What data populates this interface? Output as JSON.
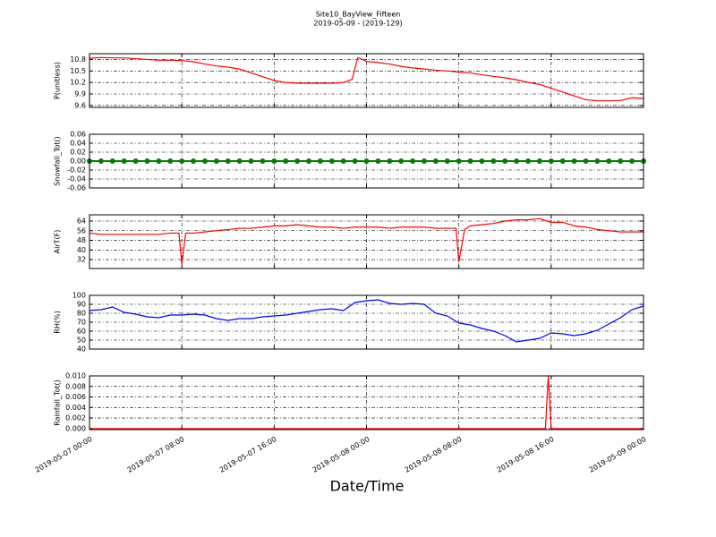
{
  "chart_data": [
    {
      "type": "line",
      "title": "Site10_BayView_Fifteen",
      "subtitle": "2019-05-09 - (2019-129)",
      "ylabel": "P(unitless)",
      "color": "#ff0000",
      "grid": true,
      "x": [
        "2019-05-07 00:00",
        "2019-05-07 01:00",
        "2019-05-07 02:00",
        "2019-05-07 03:00",
        "2019-05-07 04:00",
        "2019-05-07 05:00",
        "2019-05-07 06:00",
        "2019-05-07 07:00",
        "2019-05-07 08:00",
        "2019-05-07 09:00",
        "2019-05-07 10:00",
        "2019-05-07 11:00",
        "2019-05-07 12:00",
        "2019-05-07 13:00",
        "2019-05-07 14:00",
        "2019-05-07 15:00",
        "2019-05-07 16:00",
        "2019-05-07 17:00",
        "2019-05-07 18:00",
        "2019-05-07 19:00",
        "2019-05-07 20:00",
        "2019-05-07 21:00",
        "2019-05-07 22:00",
        "2019-05-07 22:45",
        "2019-05-07 23:15",
        "2019-05-08 00:00",
        "2019-05-08 01:00",
        "2019-05-08 02:00",
        "2019-05-08 03:00",
        "2019-05-08 04:00",
        "2019-05-08 05:00",
        "2019-05-08 06:00",
        "2019-05-08 07:00",
        "2019-05-08 08:00",
        "2019-05-08 09:00",
        "2019-05-08 10:00",
        "2019-05-08 11:00",
        "2019-05-08 12:00",
        "2019-05-08 13:00",
        "2019-05-08 14:00",
        "2019-05-08 15:00",
        "2019-05-08 16:00",
        "2019-05-08 17:00",
        "2019-05-08 18:00",
        "2019-05-08 19:00",
        "2019-05-08 20:00",
        "2019-05-08 21:00",
        "2019-05-08 22:00",
        "2019-05-08 23:00",
        "2019-05-09 00:00"
      ],
      "values": [
        10.83,
        10.85,
        10.84,
        10.84,
        10.82,
        10.8,
        10.78,
        10.78,
        10.77,
        10.74,
        10.68,
        10.63,
        10.6,
        10.55,
        10.45,
        10.35,
        10.25,
        10.2,
        10.18,
        10.18,
        10.18,
        10.18,
        10.2,
        10.28,
        10.85,
        10.75,
        10.72,
        10.68,
        10.62,
        10.58,
        10.55,
        10.52,
        10.5,
        10.47,
        10.45,
        10.4,
        10.36,
        10.32,
        10.27,
        10.2,
        10.15,
        10.05,
        9.95,
        9.85,
        9.75,
        9.72,
        9.72,
        9.73,
        9.8,
        9.78
      ],
      "xlim": [
        "2019-05-07 00:00",
        "2019-05-09 00:00"
      ],
      "xticks": [
        "2019-05-07 00:00",
        "2019-05-07 08:00",
        "2019-05-07 16:00",
        "2019-05-08 00:00",
        "2019-05-08 08:00",
        "2019-05-08 16:00",
        "2019-05-09 00:00"
      ],
      "ylim": [
        9.55,
        10.95
      ],
      "yticks": [
        9.6,
        9.9,
        10.2,
        10.5,
        10.8
      ]
    },
    {
      "type": "line",
      "ylabel": "Snowfall_Tot()",
      "color": "#008000",
      "marker": "o",
      "grid": true,
      "x": [
        "2019-05-07 00:00",
        "2019-05-07 01:00",
        "2019-05-07 02:00",
        "2019-05-07 03:00",
        "2019-05-07 04:00",
        "2019-05-07 05:00",
        "2019-05-07 06:00",
        "2019-05-07 07:00",
        "2019-05-07 08:00",
        "2019-05-07 09:00",
        "2019-05-07 10:00",
        "2019-05-07 11:00",
        "2019-05-07 12:00",
        "2019-05-07 13:00",
        "2019-05-07 14:00",
        "2019-05-07 15:00",
        "2019-05-07 16:00",
        "2019-05-07 17:00",
        "2019-05-07 18:00",
        "2019-05-07 19:00",
        "2019-05-07 20:00",
        "2019-05-07 21:00",
        "2019-05-07 22:00",
        "2019-05-07 23:00",
        "2019-05-08 00:00",
        "2019-05-08 01:00",
        "2019-05-08 02:00",
        "2019-05-08 03:00",
        "2019-05-08 04:00",
        "2019-05-08 05:00",
        "2019-05-08 06:00",
        "2019-05-08 07:00",
        "2019-05-08 08:00",
        "2019-05-08 09:00",
        "2019-05-08 10:00",
        "2019-05-08 11:00",
        "2019-05-08 12:00",
        "2019-05-08 13:00",
        "2019-05-08 14:00",
        "2019-05-08 15:00",
        "2019-05-08 16:00",
        "2019-05-08 17:00",
        "2019-05-08 18:00",
        "2019-05-08 19:00",
        "2019-05-08 20:00",
        "2019-05-08 21:00",
        "2019-05-08 22:00",
        "2019-05-08 23:00",
        "2019-05-09 00:00"
      ],
      "values": [
        0,
        0,
        0,
        0,
        0,
        0,
        0,
        0,
        0,
        0,
        0,
        0,
        0,
        0,
        0,
        0,
        0,
        0,
        0,
        0,
        0,
        0,
        0,
        0,
        0,
        0,
        0,
        0,
        0,
        0,
        0,
        0,
        0,
        0,
        0,
        0,
        0,
        0,
        0,
        0,
        0,
        0,
        0,
        0,
        0,
        0,
        0,
        0,
        0
      ],
      "xlim": [
        "2019-05-07 00:00",
        "2019-05-09 00:00"
      ],
      "xticks": [
        "2019-05-07 00:00",
        "2019-05-07 08:00",
        "2019-05-07 16:00",
        "2019-05-08 00:00",
        "2019-05-08 08:00",
        "2019-05-08 16:00",
        "2019-05-09 00:00"
      ],
      "ylim": [
        -0.06,
        0.06
      ],
      "yticks": [
        -0.06,
        -0.04,
        -0.02,
        {
          "value": 0,
          "label": "0.00"
        },
        0.02,
        0.04,
        0.06
      ]
    },
    {
      "type": "line",
      "ylabel": "AirT(F)",
      "color": "#ff0000",
      "grid": true,
      "x": [
        "2019-05-07 00:00",
        "2019-05-07 01:00",
        "2019-05-07 02:00",
        "2019-05-07 03:00",
        "2019-05-07 04:00",
        "2019-05-07 05:00",
        "2019-05-07 06:00",
        "2019-05-07 07:00",
        "2019-05-07 07:45",
        "2019-05-07 08:00",
        "2019-05-07 08:20",
        "2019-05-07 09:00",
        "2019-05-07 10:00",
        "2019-05-07 11:00",
        "2019-05-07 12:00",
        "2019-05-07 13:00",
        "2019-05-07 14:00",
        "2019-05-07 15:00",
        "2019-05-07 16:00",
        "2019-05-07 17:00",
        "2019-05-07 18:00",
        "2019-05-07 19:00",
        "2019-05-07 20:00",
        "2019-05-07 21:00",
        "2019-05-07 22:00",
        "2019-05-07 23:00",
        "2019-05-08 00:00",
        "2019-05-08 01:00",
        "2019-05-08 02:00",
        "2019-05-08 03:00",
        "2019-05-08 04:00",
        "2019-05-08 05:00",
        "2019-05-08 06:00",
        "2019-05-08 07:00",
        "2019-05-08 07:45",
        "2019-05-08 08:00",
        "2019-05-08 08:30",
        "2019-05-08 09:00",
        "2019-05-08 10:00",
        "2019-05-08 11:00",
        "2019-05-08 12:00",
        "2019-05-08 13:00",
        "2019-05-08 14:00",
        "2019-05-08 15:00",
        "2019-05-08 16:00",
        "2019-05-08 17:00",
        "2019-05-08 18:00",
        "2019-05-08 19:00",
        "2019-05-08 20:00",
        "2019-05-08 21:00",
        "2019-05-08 22:00",
        "2019-05-08 23:00",
        "2019-05-09 00:00"
      ],
      "values": [
        54,
        53,
        53,
        53,
        53,
        53,
        53,
        54,
        54,
        28,
        54,
        54,
        55,
        56,
        57,
        58,
        58,
        59,
        60,
        60,
        61,
        60,
        59,
        59,
        58,
        59,
        59,
        59,
        58,
        59,
        59,
        59,
        58,
        58,
        58,
        30,
        57,
        60,
        61,
        62,
        64,
        65,
        65,
        66,
        63,
        63,
        60,
        59,
        57,
        56,
        55,
        55,
        55
      ],
      "xlim": [
        "2019-05-07 00:00",
        "2019-05-09 00:00"
      ],
      "xticks": [
        "2019-05-07 00:00",
        "2019-05-07 08:00",
        "2019-05-07 16:00",
        "2019-05-08 00:00",
        "2019-05-08 08:00",
        "2019-05-08 16:00",
        "2019-05-09 00:00"
      ],
      "ylim": [
        24.6,
        69.2
      ],
      "yticks": [
        32,
        40,
        48,
        56,
        64
      ]
    },
    {
      "type": "line",
      "ylabel": "RH(%)",
      "color": "#0000ff",
      "grid": true,
      "x": [
        "2019-05-07 00:00",
        "2019-05-07 01:00",
        "2019-05-07 02:00",
        "2019-05-07 03:00",
        "2019-05-07 04:00",
        "2019-05-07 05:00",
        "2019-05-07 06:00",
        "2019-05-07 07:00",
        "2019-05-07 08:00",
        "2019-05-07 09:00",
        "2019-05-07 10:00",
        "2019-05-07 11:00",
        "2019-05-07 12:00",
        "2019-05-07 13:00",
        "2019-05-07 14:00",
        "2019-05-07 15:00",
        "2019-05-07 16:00",
        "2019-05-07 17:00",
        "2019-05-07 18:00",
        "2019-05-07 19:00",
        "2019-05-07 20:00",
        "2019-05-07 21:00",
        "2019-05-07 22:00",
        "2019-05-07 23:00",
        "2019-05-08 00:00",
        "2019-05-08 01:00",
        "2019-05-08 02:00",
        "2019-05-08 03:00",
        "2019-05-08 04:00",
        "2019-05-08 05:00",
        "2019-05-08 06:00",
        "2019-05-08 07:00",
        "2019-05-08 08:00",
        "2019-05-08 09:00",
        "2019-05-08 10:00",
        "2019-05-08 11:00",
        "2019-05-08 12:00",
        "2019-05-08 13:00",
        "2019-05-08 14:00",
        "2019-05-08 15:00",
        "2019-05-08 16:00",
        "2019-05-08 17:00",
        "2019-05-08 18:00",
        "2019-05-08 19:00",
        "2019-05-08 20:00",
        "2019-05-08 21:00",
        "2019-05-08 22:00",
        "2019-05-08 23:00",
        "2019-05-09 00:00"
      ],
      "values": [
        83,
        84,
        87,
        81,
        79,
        76,
        75,
        78,
        78,
        79,
        78,
        74,
        72,
        74,
        74,
        76,
        77,
        78,
        80,
        82,
        84,
        85,
        83,
        92,
        94,
        95,
        91,
        90,
        91,
        90,
        80,
        77,
        69,
        67,
        63,
        60,
        55,
        48,
        50,
        52,
        58,
        57,
        55,
        57,
        61,
        68,
        75,
        84,
        88
      ],
      "xlim": [
        "2019-05-07 00:00",
        "2019-05-09 00:00"
      ],
      "xticks": [
        "2019-05-07 00:00",
        "2019-05-07 08:00",
        "2019-05-07 16:00",
        "2019-05-08 00:00",
        "2019-05-08 08:00",
        "2019-05-08 16:00",
        "2019-05-09 00:00"
      ],
      "ylim": [
        40,
        100
      ],
      "yticks": [
        40,
        50,
        60,
        70,
        80,
        90,
        100
      ]
    },
    {
      "type": "line",
      "ylabel": "Rainfall_Tot()",
      "xlabel": "Date/Time",
      "color": "#ff0000",
      "grid": true,
      "x": [
        "2019-05-07 00:00",
        "2019-05-08 15:30",
        "2019-05-08 15:45",
        "2019-05-08 16:00",
        "2019-05-09 00:00"
      ],
      "values": [
        0,
        0,
        0.01,
        0,
        0
      ],
      "xlim": [
        "2019-05-07 00:00",
        "2019-05-09 00:00"
      ],
      "xticks": [
        "2019-05-07 00:00",
        "2019-05-07 08:00",
        "2019-05-07 16:00",
        "2019-05-08 00:00",
        "2019-05-08 08:00",
        "2019-05-08 16:00",
        "2019-05-09 00:00"
      ],
      "ylim": [
        -0.0002,
        0.01
      ],
      "yticks": [
        {
          "value": 0,
          "label": "0.000"
        },
        0.002,
        0.004,
        0.006,
        0.008,
        {
          "value": 0.01,
          "label": "0.010"
        }
      ]
    }
  ]
}
